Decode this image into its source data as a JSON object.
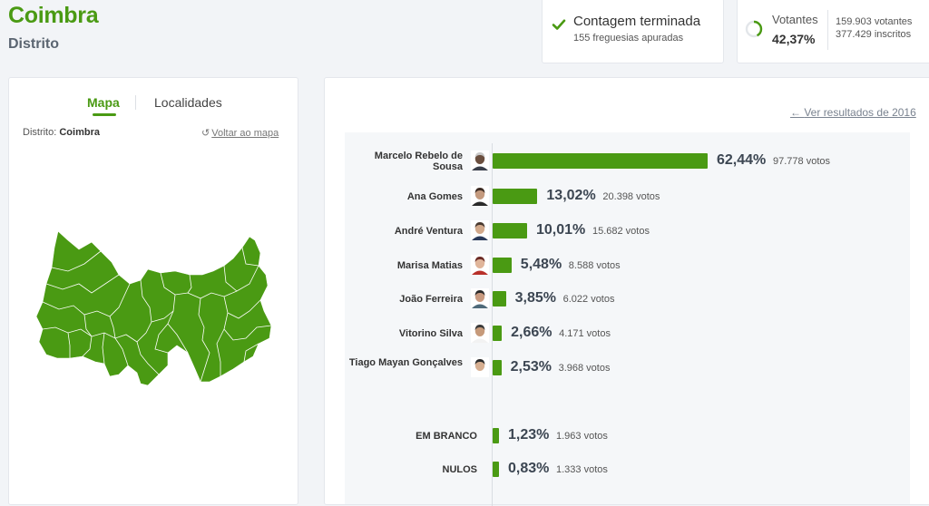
{
  "header": {
    "title": "Coimbra",
    "subtitle": "Distrito"
  },
  "count": {
    "title": "Contagem terminada",
    "subtitle": "155 freguesias apuradas"
  },
  "turnout": {
    "label": "Votantes",
    "percent": "42,37%",
    "percent_value": 42.37,
    "voters": "159.903 votantes",
    "registered": "377.429 inscritos"
  },
  "map_panel": {
    "tabs": [
      "Mapa",
      "Localidades"
    ],
    "district_label": "Distrito:",
    "district_value": "Coimbra",
    "back_link": "Voltar ao mapa"
  },
  "results": {
    "previous_link": "Ver resultados de 2016",
    "candidates": [
      {
        "name": "Marcelo Rebelo de Sousa",
        "percent": "62,44%",
        "value": 62.44,
        "votes": "97.778 votos",
        "avatar": "avatar-grey-hair-man"
      },
      {
        "name": "Ana Gomes",
        "percent": "13,02%",
        "value": 13.02,
        "votes": "20.398 votos",
        "avatar": "avatar-woman-dark-hair"
      },
      {
        "name": "André Ventura",
        "percent": "10,01%",
        "value": 10.01,
        "votes": "15.682 votos",
        "avatar": "avatar-man-suit"
      },
      {
        "name": "Marisa Matias",
        "percent": "5,48%",
        "value": 5.48,
        "votes": "8.588 votos",
        "avatar": "avatar-woman-red"
      },
      {
        "name": "João Ferreira",
        "percent": "3,85%",
        "value": 3.85,
        "votes": "6.022 votos",
        "avatar": "avatar-man-beard"
      },
      {
        "name": "Vitorino Silva",
        "percent": "2,66%",
        "value": 2.66,
        "votes": "4.171 votos",
        "avatar": "avatar-man-white-shirt"
      },
      {
        "name": "Tiago Mayan Gonçalves",
        "percent": "2,53%",
        "value": 2.53,
        "votes": "3.968 votos",
        "avatar": "avatar-man-glasses"
      }
    ],
    "others": [
      {
        "name": "EM BRANCO",
        "percent": "1,23%",
        "value": 1.23,
        "votes": "1.963 votos"
      },
      {
        "name": "NULOS",
        "percent": "0,83%",
        "value": 0.83,
        "votes": "1.333 votos"
      }
    ]
  },
  "colors": {
    "accent": "#4a9a13",
    "map_fill": "#4a9a13"
  }
}
